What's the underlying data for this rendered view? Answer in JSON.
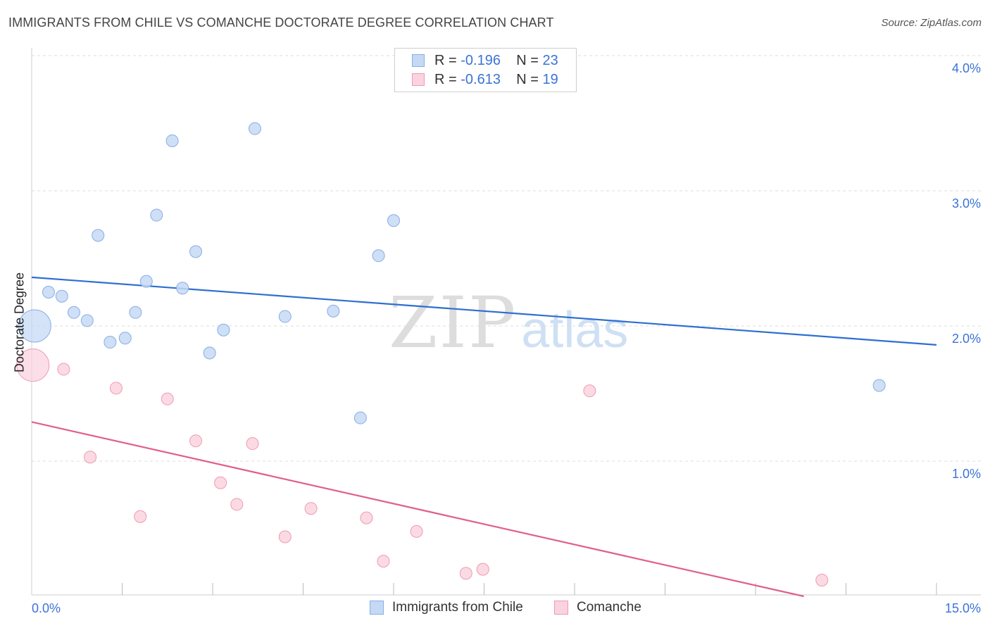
{
  "title": "IMMIGRANTS FROM CHILE VS COMANCHE DOCTORATE DEGREE CORRELATION CHART",
  "source": "Source: ZipAtlas.com",
  "watermark": {
    "zip": "ZIP",
    "atlas": "atlas"
  },
  "legend_top": [
    {
      "r_label": "R = ",
      "r_value": "-0.196",
      "n_label": "N = ",
      "n_value": "23"
    },
    {
      "r_label": "R = ",
      "r_value": "-0.613",
      "n_label": "N = ",
      "n_value": "19"
    }
  ],
  "legend_bottom": [
    "Immigrants from Chile",
    "Comanche"
  ],
  "colors": {
    "blue_fill": "#c5d9f5",
    "blue_stroke": "#86aee6",
    "blue_line": "#2e6fd0",
    "pink_fill": "#fad3df",
    "pink_stroke": "#ee9ab3",
    "pink_line": "#e0608a",
    "grid": "#dddddd",
    "tick_text": "#3a73d6"
  },
  "chart_data": {
    "type": "scatter",
    "title": "IMMIGRANTS FROM CHILE VS COMANCHE DOCTORATE DEGREE CORRELATION CHART",
    "xlabel": "",
    "ylabel": "Doctorate Degree",
    "xlim": [
      0,
      15
    ],
    "ylim": [
      0,
      4.1
    ],
    "x_tick_labels": [
      {
        "value": 0,
        "label": "0.0%"
      },
      {
        "value": 15,
        "label": "15.0%"
      }
    ],
    "y_tick_labels": [
      {
        "value": 1,
        "label": "1.0%"
      },
      {
        "value": 2,
        "label": "2.0%"
      },
      {
        "value": 3,
        "label": "3.0%"
      },
      {
        "value": 4,
        "label": "4.0%"
      }
    ],
    "grid": true,
    "legend": "top-center",
    "series": [
      {
        "name": "Immigrants from Chile",
        "color": "blue",
        "r": -0.196,
        "n": 23,
        "trend": [
          [
            0,
            2.36
          ],
          [
            15,
            1.86
          ]
        ],
        "points": [
          {
            "x": 0.05,
            "y": 2.0,
            "big": true
          },
          {
            "x": 0.28,
            "y": 2.25
          },
          {
            "x": 0.5,
            "y": 2.22
          },
          {
            "x": 0.7,
            "y": 2.1
          },
          {
            "x": 0.92,
            "y": 2.04
          },
          {
            "x": 1.1,
            "y": 2.67
          },
          {
            "x": 1.3,
            "y": 1.88
          },
          {
            "x": 1.55,
            "y": 1.91
          },
          {
            "x": 1.72,
            "y": 2.1
          },
          {
            "x": 1.9,
            "y": 2.33
          },
          {
            "x": 2.07,
            "y": 2.82
          },
          {
            "x": 2.33,
            "y": 3.37
          },
          {
            "x": 2.5,
            "y": 2.28
          },
          {
            "x": 2.72,
            "y": 2.55
          },
          {
            "x": 2.95,
            "y": 1.8
          },
          {
            "x": 3.18,
            "y": 1.97
          },
          {
            "x": 3.7,
            "y": 3.46
          },
          {
            "x": 4.2,
            "y": 2.07
          },
          {
            "x": 5.0,
            "y": 2.11
          },
          {
            "x": 5.45,
            "y": 1.32
          },
          {
            "x": 5.75,
            "y": 2.52
          },
          {
            "x": 6.0,
            "y": 2.78
          },
          {
            "x": 14.05,
            "y": 1.56
          }
        ]
      },
      {
        "name": "Comanche",
        "color": "pink",
        "r": -0.613,
        "n": 19,
        "trend": [
          [
            0,
            1.29
          ],
          [
            12.8,
            0.0
          ]
        ],
        "points": [
          {
            "x": 0.02,
            "y": 1.71,
            "big": true
          },
          {
            "x": 0.53,
            "y": 1.68
          },
          {
            "x": 0.97,
            "y": 1.03
          },
          {
            "x": 1.4,
            "y": 1.54
          },
          {
            "x": 1.8,
            "y": 0.59
          },
          {
            "x": 2.25,
            "y": 1.46
          },
          {
            "x": 2.72,
            "y": 1.15
          },
          {
            "x": 3.13,
            "y": 0.84
          },
          {
            "x": 3.4,
            "y": 0.68
          },
          {
            "x": 3.66,
            "y": 1.13
          },
          {
            "x": 4.2,
            "y": 0.44
          },
          {
            "x": 4.63,
            "y": 0.65
          },
          {
            "x": 5.55,
            "y": 0.58
          },
          {
            "x": 5.83,
            "y": 0.26
          },
          {
            "x": 6.38,
            "y": 0.48
          },
          {
            "x": 7.2,
            "y": 0.17
          },
          {
            "x": 7.48,
            "y": 0.2
          },
          {
            "x": 9.25,
            "y": 1.52
          },
          {
            "x": 13.1,
            "y": 0.12
          }
        ]
      }
    ]
  }
}
